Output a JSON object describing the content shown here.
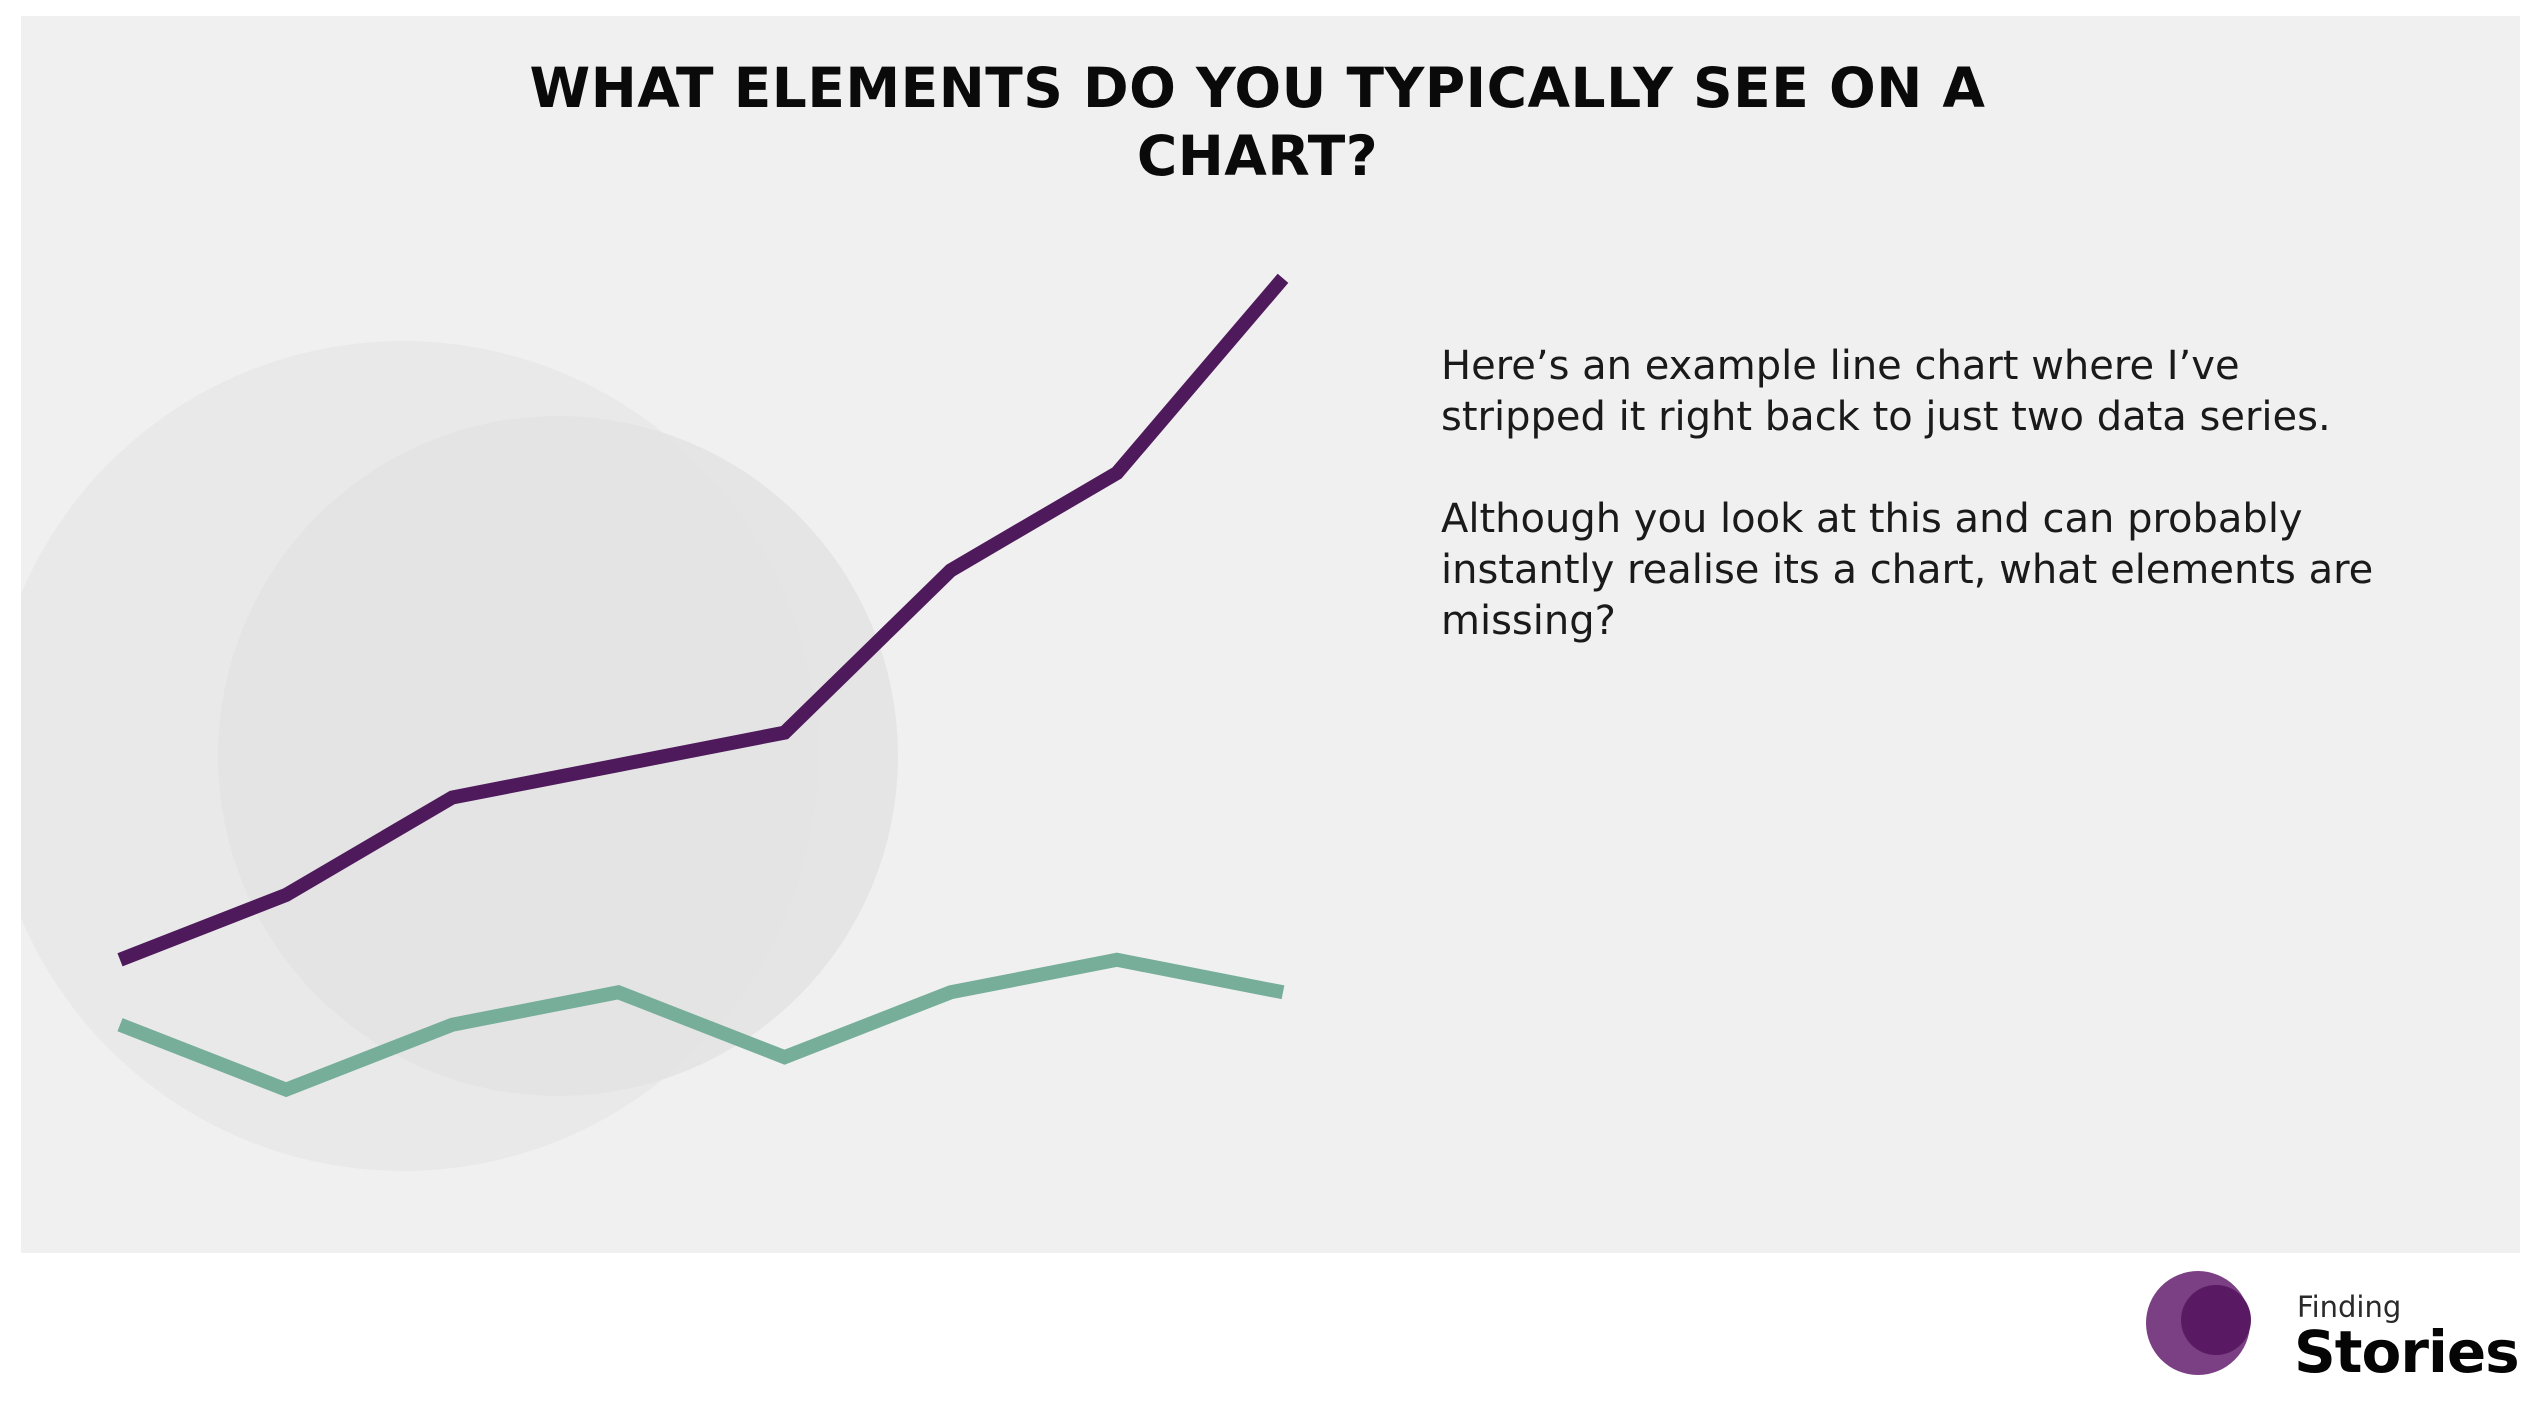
{
  "slide": {
    "title_line1": "WHAT ELEMENTS DO YOU TYPICALLY SEE ON A",
    "title_line2": "CHART?",
    "paragraph1": "Here’s an example line chart where I’ve\nstripped it right back to just two data series.",
    "paragraph2": "Although you look at this and can probably\ninstantly realise its a chart, what elements are\nmissing?",
    "background_color": "#f0f0f0"
  },
  "logo": {
    "small_text": "Finding",
    "big_text": "Stories",
    "colors": [
      "#7b3f84",
      "#5a1a63"
    ]
  },
  "chart_data": {
    "type": "line",
    "x": [
      1,
      2,
      3,
      4,
      5,
      6,
      7,
      8
    ],
    "series": [
      {
        "values": [
          10.5,
          13.5,
          18,
          19.5,
          21,
          28.5,
          33,
          42
        ],
        "color": "#4e1a5c"
      },
      {
        "values": [
          7.5,
          4.5,
          7.5,
          9,
          6,
          9,
          10.5,
          9
        ],
        "color": "#76ae9a"
      }
    ],
    "ylim": [
      0,
      44
    ],
    "axes_visible": false,
    "grid": false,
    "legend": "none"
  }
}
